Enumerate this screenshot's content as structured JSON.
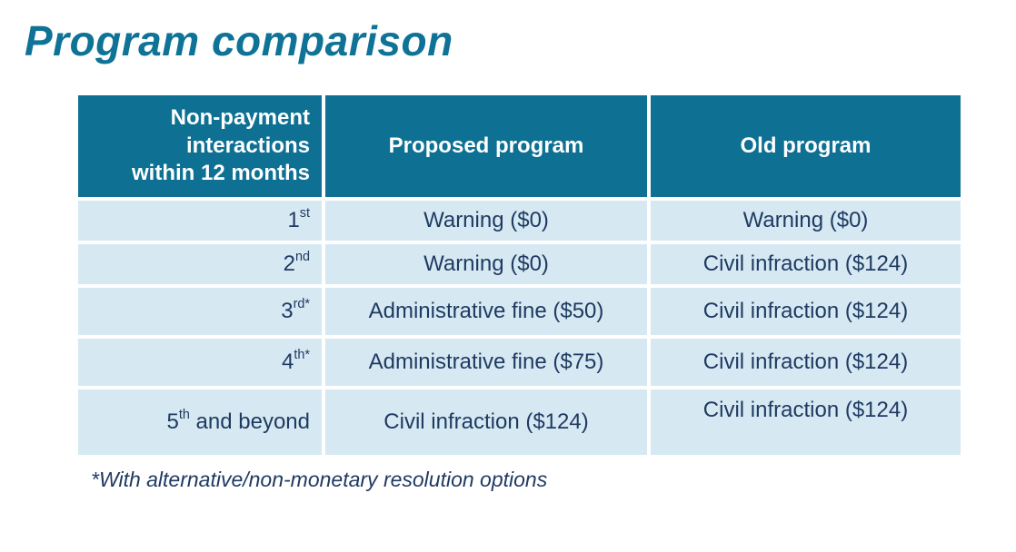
{
  "title": "Program comparison",
  "colors": {
    "title_text": "#0e7396",
    "header_bg": "#0e7092",
    "header_text": "#ffffff",
    "row_bg": "#d6e9f2",
    "cell_text": "#1f3a62"
  },
  "table": {
    "headers": {
      "interactions": "Non-payment\ninteractions\nwithin 12 months",
      "proposed": "Proposed program",
      "old": "Old program"
    },
    "rows": [
      {
        "num": "1",
        "suffix": "st",
        "star": "",
        "rest": "",
        "proposed": "Warning ($0)",
        "old": "Warning ($0)"
      },
      {
        "num": "2",
        "suffix": "nd",
        "star": "",
        "rest": "",
        "proposed": "Warning ($0)",
        "old": "Civil infraction ($124)"
      },
      {
        "num": "3",
        "suffix": "rd",
        "star": "*",
        "rest": "",
        "proposed": "Administrative fine ($50)",
        "old": "Civil infraction ($124)"
      },
      {
        "num": "4",
        "suffix": "th",
        "star": "*",
        "rest": "",
        "proposed": "Administrative fine ($75)",
        "old": "Civil infraction ($124)"
      },
      {
        "num": "5",
        "suffix": "th",
        "star": "",
        "rest": " and beyond",
        "proposed": "Civil infraction ($124)",
        "old": "Civil infraction ($124)"
      }
    ]
  },
  "footnote": "*With alternative/non-monetary resolution options"
}
